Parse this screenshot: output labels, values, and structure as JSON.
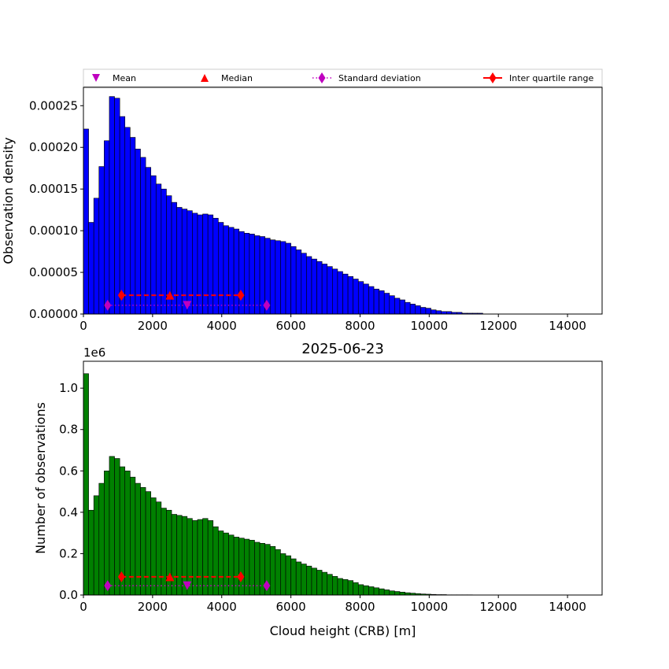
{
  "chart_data": [
    {
      "type": "bar",
      "panel": "top",
      "bar_color": "#0000ff",
      "edge_color": "#000000",
      "ylabel": "Observation density",
      "xlabel": "",
      "xlim": [
        0,
        15000
      ],
      "ylim": [
        0,
        0.000272
      ],
      "x_ticks": [
        "0",
        "2000",
        "4000",
        "6000",
        "8000",
        "10000",
        "12000",
        "14000"
      ],
      "y_ticks": [
        "0.00000",
        "0.00005",
        "0.00010",
        "0.00015",
        "0.00020",
        "0.00025"
      ],
      "bin_width": 150,
      "bin_start": 0,
      "values": [
        0.000222,
        0.00011,
        0.000139,
        0.000177,
        0.000208,
        0.000261,
        0.000259,
        0.000237,
        0.000224,
        0.000212,
        0.000198,
        0.000188,
        0.000176,
        0.000166,
        0.000156,
        0.00015,
        0.000142,
        0.000134,
        0.000128,
        0.000126,
        0.000124,
        0.000121,
        0.000119,
        0.00012,
        0.000119,
        0.000115,
        0.00011,
        0.000106,
        0.000104,
        0.000102,
        9.9e-05,
        9.7e-05,
        9.6e-05,
        9.4e-05,
        9.3e-05,
        9.1e-05,
        8.9e-05,
        8.8e-05,
        8.7e-05,
        8.5e-05,
        8.1e-05,
        7.7e-05,
        7.3e-05,
        6.9e-05,
        6.6e-05,
        6.3e-05,
        6e-05,
        5.7e-05,
        5.4e-05,
        5.1e-05,
        4.8e-05,
        4.5e-05,
        4.2e-05,
        3.9e-05,
        3.6e-05,
        3.3e-05,
        3e-05,
        2.8e-05,
        2.5e-05,
        2.2e-05,
        1.9e-05,
        1.7e-05,
        1.4e-05,
        1.2e-05,
        1e-05,
        8e-06,
        7e-06,
        5e-06,
        4e-06,
        3e-06,
        3e-06,
        2e-06,
        2e-06,
        1e-06,
        1e-06,
        1e-06,
        1e-06,
        0,
        0,
        0,
        0,
        0,
        0,
        0,
        0,
        0,
        0,
        0,
        0,
        0,
        0,
        0,
        0,
        0,
        0,
        0,
        0,
        0,
        0,
        0
      ],
      "markers": {
        "y": 1.05e-05,
        "y_iqr": 2.25e-05,
        "mean": 3000,
        "median": 2500,
        "std_range": [
          700,
          5300
        ],
        "iqr_range": [
          1100,
          4550
        ]
      }
    },
    {
      "type": "bar",
      "panel": "bottom",
      "title": "2025-06-23",
      "bar_color": "#008000",
      "edge_color": "#000000",
      "ylabel": "Number of observations",
      "xlabel": "Cloud height (CRB) [m]",
      "offset_text": "1e6",
      "xlim": [
        0,
        15000
      ],
      "ylim": [
        0,
        1.13
      ],
      "x_ticks": [
        "0",
        "2000",
        "4000",
        "6000",
        "8000",
        "10000",
        "12000",
        "14000"
      ],
      "y_ticks": [
        "0.0",
        "0.2",
        "0.4",
        "0.6",
        "0.8",
        "1.0"
      ],
      "bin_width": 150,
      "bin_start": 0,
      "values": [
        1.07,
        0.41,
        0.48,
        0.54,
        0.6,
        0.67,
        0.66,
        0.62,
        0.6,
        0.57,
        0.54,
        0.52,
        0.5,
        0.47,
        0.45,
        0.42,
        0.41,
        0.39,
        0.385,
        0.38,
        0.37,
        0.36,
        0.365,
        0.37,
        0.36,
        0.33,
        0.31,
        0.3,
        0.29,
        0.28,
        0.275,
        0.27,
        0.265,
        0.255,
        0.25,
        0.245,
        0.235,
        0.22,
        0.2,
        0.19,
        0.175,
        0.16,
        0.15,
        0.14,
        0.13,
        0.12,
        0.11,
        0.1,
        0.09,
        0.08,
        0.075,
        0.07,
        0.06,
        0.05,
        0.045,
        0.04,
        0.035,
        0.03,
        0.025,
        0.02,
        0.017,
        0.014,
        0.011,
        0.009,
        0.007,
        0.005,
        0.004,
        0.003,
        0.002,
        0.002,
        0.001,
        0.001,
        0.001,
        0.001,
        0.001,
        0,
        0,
        0,
        0,
        0,
        0,
        0,
        0,
        0,
        0,
        0,
        0,
        0,
        0,
        0,
        0,
        0,
        0,
        0,
        0,
        0,
        0,
        0,
        0,
        0
      ],
      "markers": {
        "y": 0.045,
        "y_iqr": 0.088,
        "mean": 3000,
        "median": 2500,
        "std_range": [
          700,
          5300
        ],
        "iqr_range": [
          1100,
          4550
        ]
      }
    }
  ],
  "legend": {
    "placement": "top, above upper panel",
    "entries": [
      {
        "label": "Mean",
        "marker": "triangle-down",
        "color": "#bf00bf"
      },
      {
        "label": "Median",
        "marker": "triangle-up",
        "color": "#ff0000"
      },
      {
        "label": "Standard deviation",
        "marker": "diamond",
        "line": "dotted",
        "color": "#bf00bf"
      },
      {
        "label": "Inter quartile range",
        "marker": "diamond",
        "line": "solid",
        "color": "#ff0000"
      }
    ]
  }
}
